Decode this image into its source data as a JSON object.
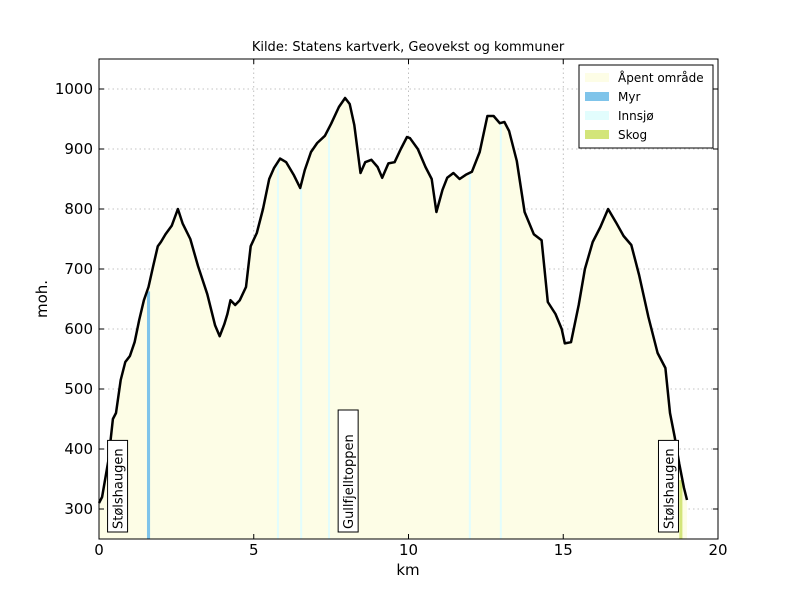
{
  "chart_data": {
    "type": "area",
    "title": "Kilde: Statens kartverk, Geovekst og kommuner",
    "xlabel": "km",
    "ylabel": "moh.",
    "xlim": [
      0,
      20
    ],
    "ylim": [
      250,
      1050
    ],
    "xticks": [
      0,
      5,
      10,
      15,
      20
    ],
    "yticks": [
      300,
      400,
      500,
      600,
      700,
      800,
      900,
      1000
    ],
    "grid": true,
    "legend_position": "top-right",
    "legend": [
      {
        "label": "Åpent område",
        "color": "#fdfde6"
      },
      {
        "label": "Myr",
        "color": "#7fc4ea"
      },
      {
        "label": "Innsjø",
        "color": "#e2fdfd"
      },
      {
        "label": "Skog",
        "color": "#d3e57a"
      }
    ],
    "profile": {
      "x": [
        0,
        0.1,
        0.3,
        0.45,
        0.55,
        0.7,
        0.85,
        1.0,
        1.15,
        1.3,
        1.45,
        1.6,
        1.75,
        1.9,
        2.0,
        2.15,
        2.35,
        2.55,
        2.7,
        2.95,
        3.2,
        3.5,
        3.75,
        3.9,
        4.05,
        4.15,
        4.25,
        4.4,
        4.55,
        4.75,
        4.9,
        5.1,
        5.3,
        5.5,
        5.65,
        5.85,
        6.05,
        6.3,
        6.5,
        6.65,
        6.85,
        7.05,
        7.3,
        7.5,
        7.75,
        7.95,
        8.1,
        8.25,
        8.45,
        8.6,
        8.8,
        9.0,
        9.15,
        9.35,
        9.55,
        9.75,
        9.95,
        10.05,
        10.3,
        10.55,
        10.75,
        10.9,
        11.1,
        11.25,
        11.45,
        11.65,
        11.85,
        12.05,
        12.3,
        12.55,
        12.75,
        12.95,
        13.1,
        13.25,
        13.5,
        13.75,
        14.05,
        14.3,
        14.5,
        14.75,
        14.95,
        15.05,
        15.25,
        15.5,
        15.7,
        15.95,
        16.2,
        16.45,
        16.7,
        16.95,
        17.2,
        17.45,
        17.75,
        18.05,
        18.3,
        18.45,
        18.6,
        18.75,
        18.9,
        19.0
      ],
      "y": [
        310,
        320,
        380,
        450,
        460,
        515,
        545,
        555,
        578,
        615,
        648,
        670,
        705,
        738,
        745,
        758,
        772,
        800,
        776,
        750,
        705,
        658,
        606,
        588,
        608,
        625,
        648,
        640,
        648,
        670,
        738,
        760,
        800,
        850,
        868,
        884,
        878,
        856,
        835,
        865,
        895,
        910,
        922,
        942,
        970,
        985,
        975,
        940,
        860,
        878,
        882,
        870,
        852,
        876,
        878,
        900,
        920,
        918,
        900,
        870,
        850,
        795,
        832,
        852,
        860,
        850,
        857,
        862,
        895,
        955,
        955,
        943,
        945,
        930,
        880,
        795,
        758,
        748,
        645,
        625,
        600,
        576,
        578,
        640,
        700,
        745,
        770,
        800,
        778,
        755,
        740,
        690,
        620,
        560,
        535,
        460,
        420,
        375,
        335,
        315
      ]
    },
    "land_cover_bands": [
      {
        "label": "Myr",
        "x": [
          1.55,
          1.65
        ]
      },
      {
        "label": "Innsjø",
        "x": [
          5.75,
          5.8
        ]
      },
      {
        "label": "Innsjø",
        "x": [
          6.5,
          6.55
        ]
      },
      {
        "label": "Innsjø",
        "x": [
          7.4,
          7.45
        ]
      },
      {
        "label": "Innsjø",
        "x": [
          11.95,
          12.0
        ]
      },
      {
        "label": "Innsjø",
        "x": [
          12.95,
          13.0
        ]
      },
      {
        "label": "Skog",
        "x": [
          18.75,
          18.85
        ]
      }
    ],
    "annotations": [
      {
        "text": "Stølshaugen",
        "x": 0.6
      },
      {
        "text": "Gullfjelltoppen",
        "x": 8.05
      },
      {
        "text": "Stølshaugen",
        "x": 18.4
      }
    ]
  }
}
